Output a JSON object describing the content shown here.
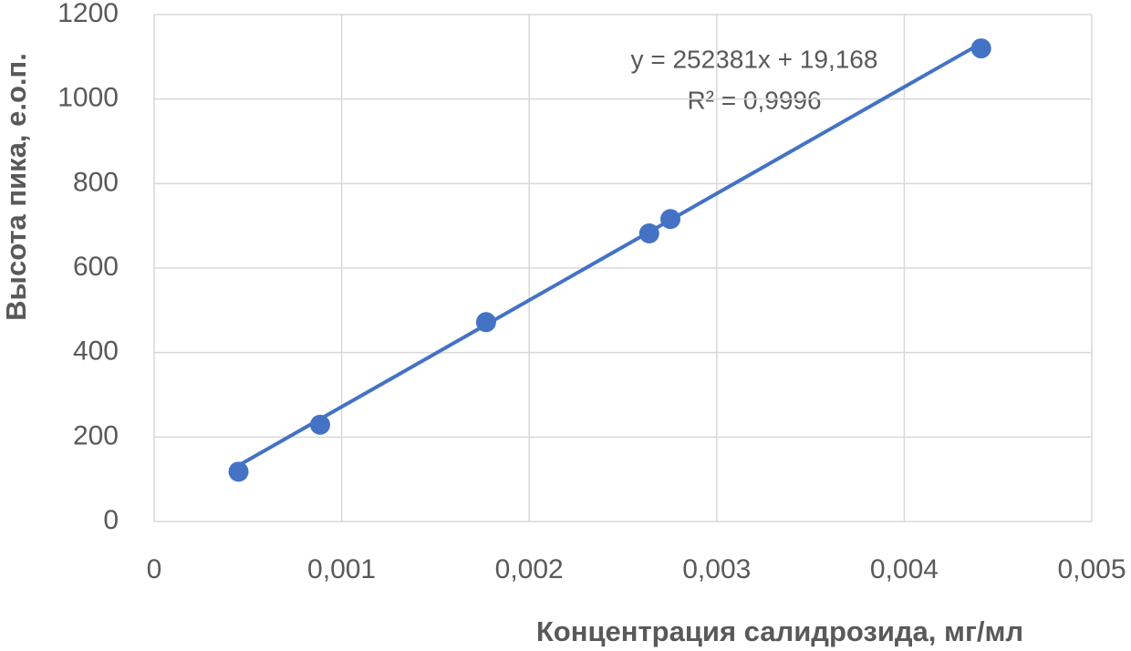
{
  "chart_data": {
    "type": "scatter",
    "x_label": "Концентрация салидрозида, мг/мл",
    "y_label": "Высота пика, е.о.п.",
    "x": [
      0.00045,
      0.000885,
      0.00177,
      0.00264,
      0.002753,
      0.00441
    ],
    "values": [
      118,
      229,
      472,
      682,
      716,
      1120
    ],
    "color": "#4472c4",
    "xlim": [
      0,
      0.005
    ],
    "xticks": [
      0,
      {
        "value": 0.001,
        "label": "0,001"
      },
      {
        "value": 0.002,
        "label": "0,002"
      },
      {
        "value": 0.003,
        "label": "0,003"
      },
      {
        "value": 0.004,
        "label": "0,004"
      },
      {
        "value": 0.005,
        "label": "0,005"
      }
    ],
    "ylim": [
      0,
      1200
    ],
    "yticks": [
      0,
      200,
      400,
      600,
      800,
      1000,
      1200
    ],
    "grid": true,
    "trendline": {
      "slope": 252381,
      "intercept": 19.168,
      "equation": "y = 252381x  + 19,168",
      "r_squared": "R² = 0,9996"
    }
  }
}
